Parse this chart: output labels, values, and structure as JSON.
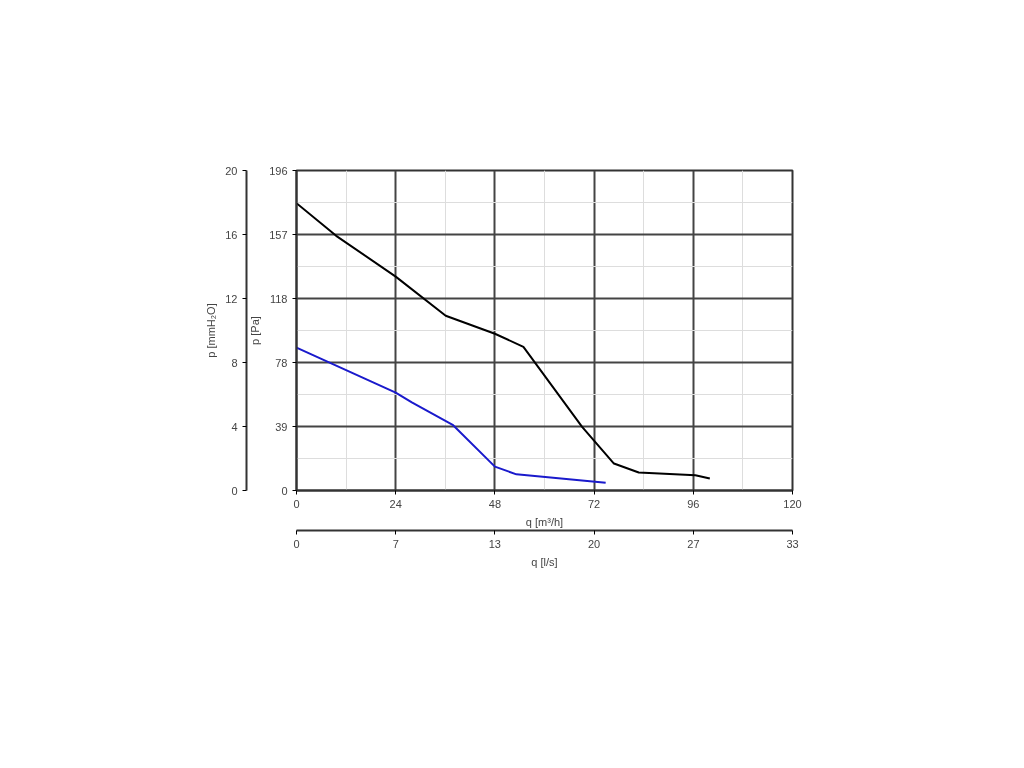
{
  "chart_data": {
    "type": "line",
    "xlabel": "q [m³/h]",
    "ylabel": "p [Pa]",
    "y2label": "p [mmH₂O]",
    "x2label": "q [l/s]",
    "xlim": [
      0,
      120
    ],
    "xticks": [
      0,
      24,
      48,
      72,
      96,
      120
    ],
    "ylim": [
      0,
      196
    ],
    "yticks": [
      0,
      {
        "value": 39.2,
        "label": "39"
      },
      {
        "value": 78.4,
        "label": "78"
      },
      {
        "value": 117.6,
        "label": "118"
      },
      {
        "value": 156.8,
        "label": "157"
      },
      196
    ],
    "y2lim": [
      0,
      20
    ],
    "y2ticks": [
      0,
      4,
      8,
      12,
      16,
      20
    ],
    "x2lim": [
      0,
      33.33
    ],
    "x2ticks": [
      0,
      {
        "value": 6.67,
        "label": "7"
      },
      {
        "value": 13.33,
        "label": "13"
      },
      20,
      {
        "value": 26.67,
        "label": "27"
      },
      {
        "value": 33.33,
        "label": "33"
      }
    ],
    "grid": true,
    "line_style": "solid",
    "marker": "none",
    "series": [
      {
        "color": "#000000",
        "x": [
          0,
          9.6,
          24,
          36.1,
          48,
          54.9,
          69.1,
          76.8,
          82.8,
          96.5,
          100
        ],
        "values": [
          176,
          156,
          131,
          107,
          96,
          88,
          39,
          16.5,
          11,
          9.4,
          7.3
        ]
      },
      {
        "color": "#1a1acc",
        "x": [
          0,
          24,
          27.9,
          37.9,
          48,
          53.2,
          74.8
        ],
        "values": [
          87.5,
          60,
          54,
          40,
          14.6,
          9.9,
          4.7
        ]
      }
    ]
  }
}
